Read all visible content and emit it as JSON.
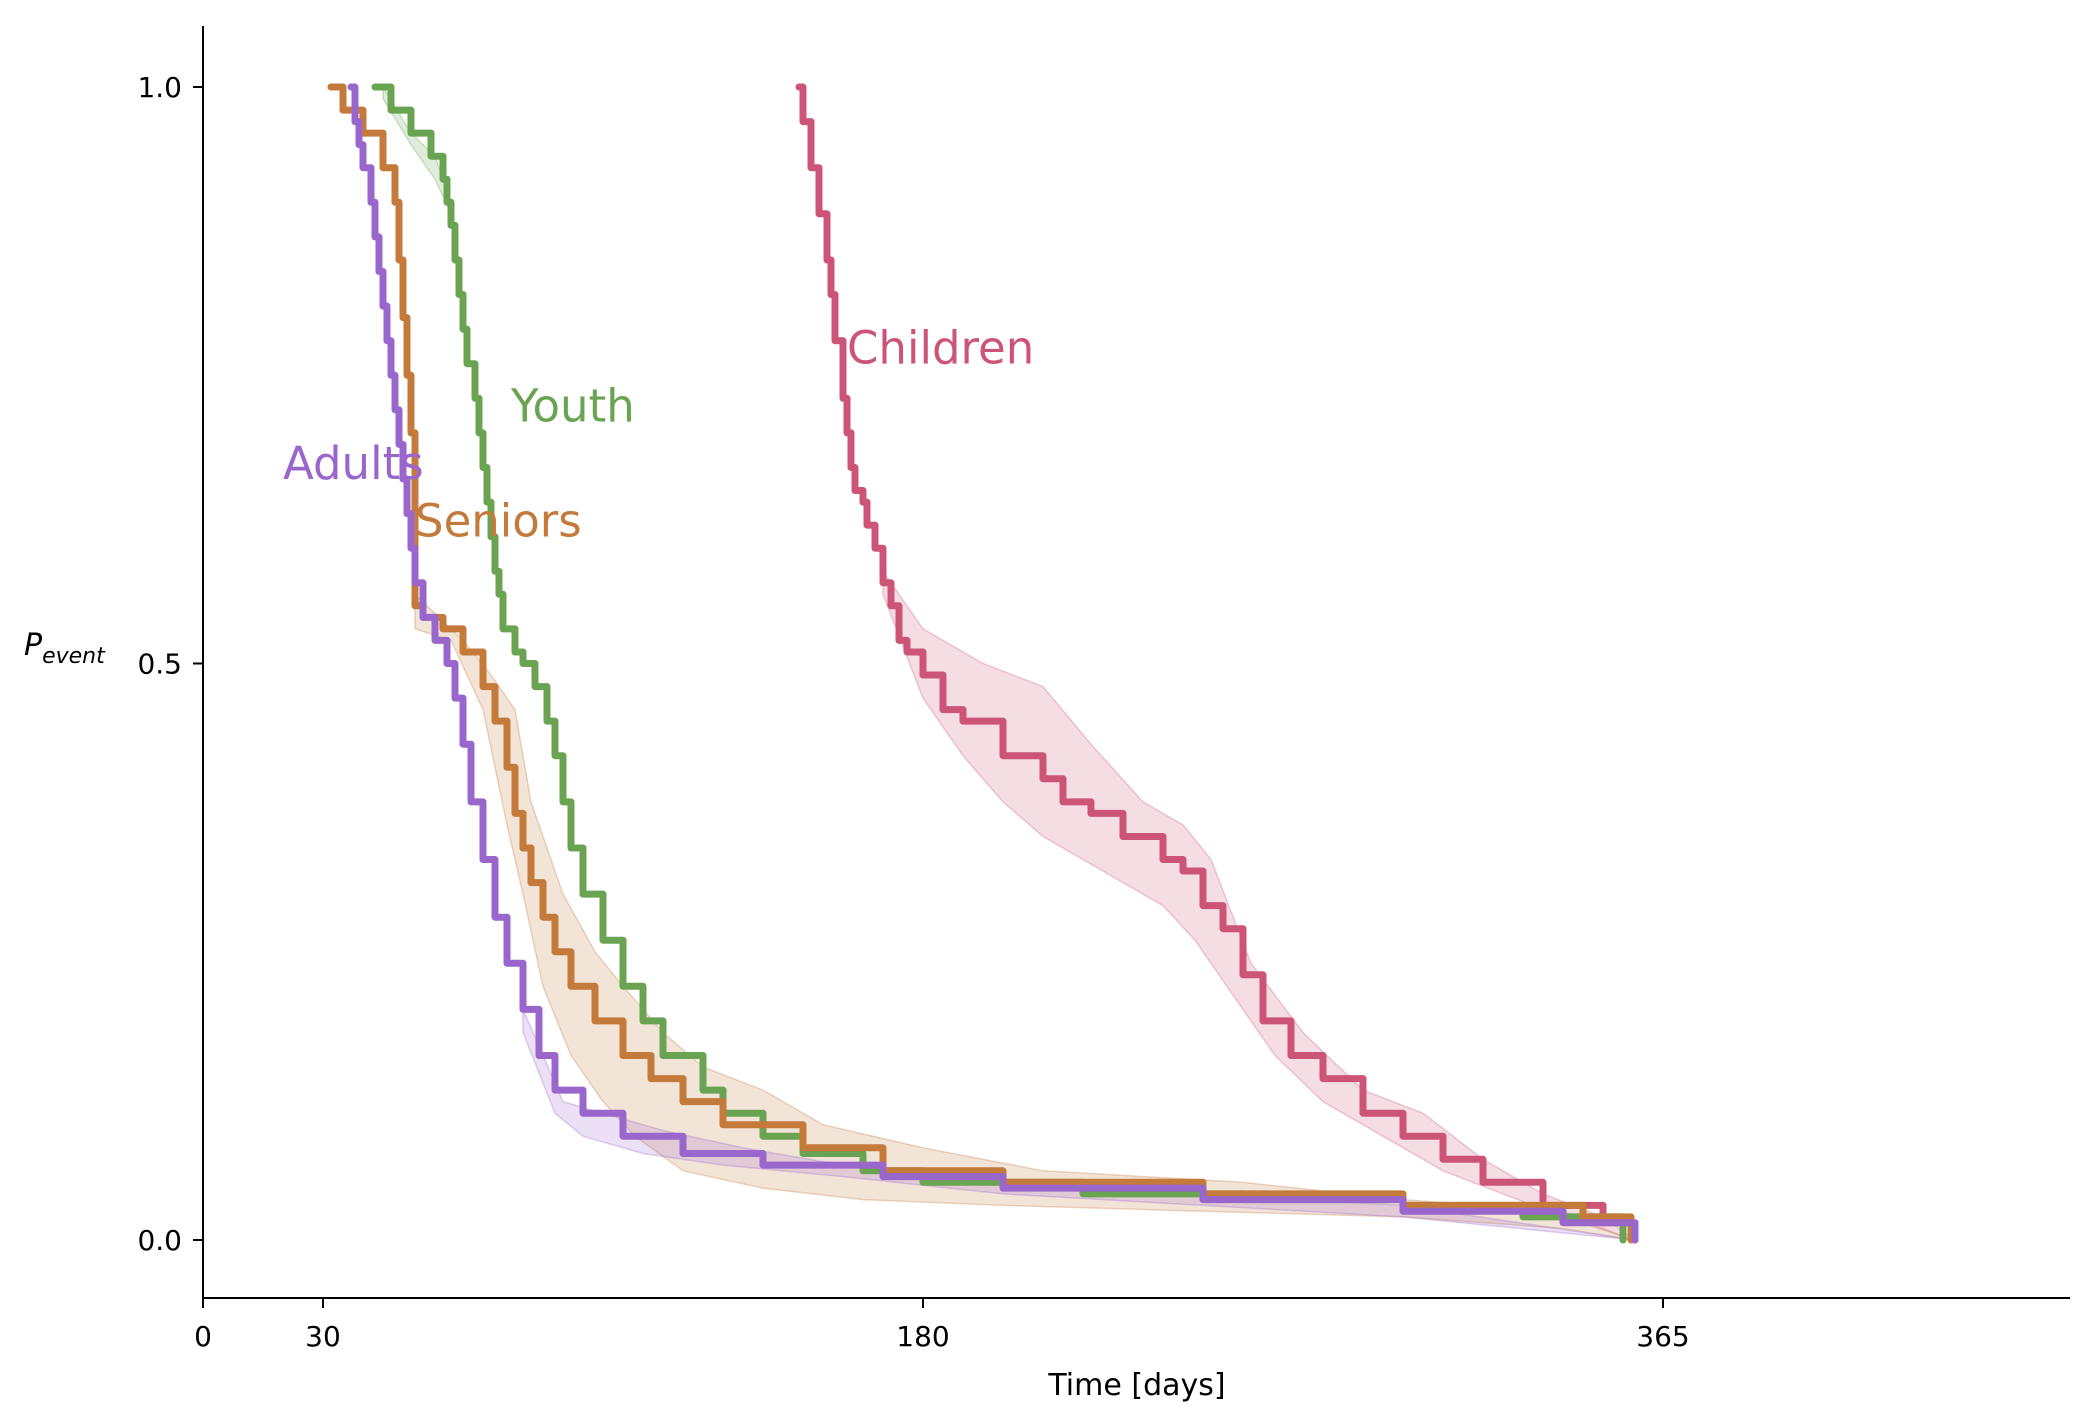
{
  "chart_data": {
    "type": "line",
    "title": "",
    "xlabel": "Time [days]",
    "ylabel_main": "P",
    "ylabel_sub": "event",
    "xlim": [
      0,
      375
    ],
    "ylim": [
      -0.05,
      1.05
    ],
    "xticks": [
      0,
      30,
      180,
      365
    ],
    "xtick_labels": [
      "0",
      "30",
      "180",
      "365"
    ],
    "yticks": [
      0.0,
      0.5,
      1.0
    ],
    "ytick_labels": [
      "0.0",
      "0.5",
      "1.0"
    ],
    "grid": false,
    "series": [
      {
        "name": "Children",
        "color": "#cc5577",
        "label_at": [
          161,
          0.76
        ],
        "points": [
          [
            149,
            1.0
          ],
          [
            150,
            0.97
          ],
          [
            152,
            0.93
          ],
          [
            154,
            0.89
          ],
          [
            156,
            0.85
          ],
          [
            157,
            0.82
          ],
          [
            158,
            0.78
          ],
          [
            160,
            0.73
          ],
          [
            161,
            0.7
          ],
          [
            162,
            0.67
          ],
          [
            163,
            0.65
          ],
          [
            165,
            0.64
          ],
          [
            166,
            0.62
          ],
          [
            168,
            0.6
          ],
          [
            170,
            0.57
          ],
          [
            172,
            0.55
          ],
          [
            174,
            0.52
          ],
          [
            176,
            0.51
          ],
          [
            180,
            0.49
          ],
          [
            185,
            0.46
          ],
          [
            190,
            0.45
          ],
          [
            200,
            0.42
          ],
          [
            210,
            0.4
          ],
          [
            215,
            0.38
          ],
          [
            222,
            0.37
          ],
          [
            230,
            0.35
          ],
          [
            240,
            0.33
          ],
          [
            245,
            0.32
          ],
          [
            250,
            0.29
          ],
          [
            255,
            0.27
          ],
          [
            260,
            0.23
          ],
          [
            265,
            0.19
          ],
          [
            272,
            0.16
          ],
          [
            280,
            0.14
          ],
          [
            290,
            0.11
          ],
          [
            300,
            0.09
          ],
          [
            310,
            0.07
          ],
          [
            320,
            0.05
          ],
          [
            335,
            0.03
          ],
          [
            350,
            0.015
          ],
          [
            358,
            0.0
          ]
        ],
        "band": [
          [
            [
              170,
              0.58
            ],
            [
              180,
              0.53
            ],
            [
              195,
              0.5
            ],
            [
              210,
              0.48
            ],
            [
              222,
              0.43
            ],
            [
              235,
              0.38
            ],
            [
              245,
              0.36
            ],
            [
              252,
              0.33
            ],
            [
              262,
              0.24
            ],
            [
              275,
              0.18
            ],
            [
              290,
              0.13
            ],
            [
              305,
              0.11
            ],
            [
              320,
              0.07
            ],
            [
              335,
              0.04
            ],
            [
              350,
              0.02
            ],
            [
              358,
              0.0
            ]
          ],
          [
            [
              170,
              0.56
            ],
            [
              180,
              0.47
            ],
            [
              190,
              0.42
            ],
            [
              200,
              0.38
            ],
            [
              210,
              0.35
            ],
            [
              220,
              0.33
            ],
            [
              230,
              0.31
            ],
            [
              240,
              0.29
            ],
            [
              248,
              0.26
            ],
            [
              258,
              0.21
            ],
            [
              268,
              0.16
            ],
            [
              280,
              0.12
            ],
            [
              295,
              0.09
            ],
            [
              310,
              0.06
            ],
            [
              325,
              0.04
            ],
            [
              340,
              0.02
            ],
            [
              358,
              0.0
            ]
          ]
        ]
      },
      {
        "name": "Youth",
        "color": "#6aa352",
        "label_at": [
          77,
          0.71
        ],
        "points": [
          [
            43,
            1.0
          ],
          [
            47,
            0.98
          ],
          [
            52,
            0.96
          ],
          [
            57,
            0.94
          ],
          [
            60,
            0.92
          ],
          [
            61,
            0.9
          ],
          [
            62,
            0.88
          ],
          [
            63,
            0.85
          ],
          [
            64,
            0.82
          ],
          [
            65,
            0.79
          ],
          [
            66,
            0.76
          ],
          [
            68,
            0.73
          ],
          [
            69,
            0.7
          ],
          [
            70,
            0.67
          ],
          [
            71,
            0.64
          ],
          [
            72,
            0.61
          ],
          [
            73,
            0.58
          ],
          [
            74,
            0.56
          ],
          [
            75,
            0.53
          ],
          [
            78,
            0.51
          ],
          [
            80,
            0.5
          ],
          [
            83,
            0.48
          ],
          [
            86,
            0.45
          ],
          [
            88,
            0.42
          ],
          [
            90,
            0.38
          ],
          [
            92,
            0.34
          ],
          [
            95,
            0.3
          ],
          [
            100,
            0.26
          ],
          [
            105,
            0.22
          ],
          [
            110,
            0.19
          ],
          [
            115,
            0.16
          ],
          [
            125,
            0.13
          ],
          [
            130,
            0.11
          ],
          [
            140,
            0.09
          ],
          [
            150,
            0.075
          ],
          [
            165,
            0.06
          ],
          [
            180,
            0.05
          ],
          [
            220,
            0.04
          ],
          [
            260,
            0.035
          ],
          [
            300,
            0.03
          ],
          [
            330,
            0.02
          ],
          [
            355,
            0.0
          ]
        ],
        "band": [
          [
            [
              45,
              1.0
            ],
            [
              52,
              0.96
            ],
            [
              58,
              0.94
            ],
            [
              62,
              0.9
            ]
          ],
          [
            [
              45,
              0.99
            ],
            [
              52,
              0.95
            ],
            [
              58,
              0.92
            ],
            [
              62,
              0.89
            ]
          ]
        ]
      },
      {
        "name": "Seniors",
        "color": "#c47a3a",
        "label_at": [
          53,
          0.61
        ],
        "points": [
          [
            32,
            1.0
          ],
          [
            35,
            0.98
          ],
          [
            40,
            0.96
          ],
          [
            45,
            0.93
          ],
          [
            48,
            0.9
          ],
          [
            49,
            0.85
          ],
          [
            50,
            0.8
          ],
          [
            51,
            0.75
          ],
          [
            52,
            0.7
          ],
          [
            53,
            0.65
          ],
          [
            53,
            0.55
          ],
          [
            55,
            0.54
          ],
          [
            60,
            0.53
          ],
          [
            65,
            0.51
          ],
          [
            70,
            0.48
          ],
          [
            73,
            0.45
          ],
          [
            76,
            0.41
          ],
          [
            78,
            0.37
          ],
          [
            80,
            0.34
          ],
          [
            82,
            0.31
          ],
          [
            85,
            0.28
          ],
          [
            88,
            0.25
          ],
          [
            92,
            0.22
          ],
          [
            98,
            0.19
          ],
          [
            105,
            0.16
          ],
          [
            112,
            0.14
          ],
          [
            120,
            0.12
          ],
          [
            130,
            0.1
          ],
          [
            150,
            0.08
          ],
          [
            170,
            0.06
          ],
          [
            200,
            0.05
          ],
          [
            250,
            0.04
          ],
          [
            300,
            0.03
          ],
          [
            345,
            0.02
          ],
          [
            357,
            0.0
          ]
        ],
        "band": [
          [
            [
              53,
              0.56
            ],
            [
              65,
              0.52
            ],
            [
              72,
              0.49
            ],
            [
              78,
              0.46
            ],
            [
              82,
              0.38
            ],
            [
              85,
              0.35
            ],
            [
              90,
              0.3
            ],
            [
              98,
              0.25
            ],
            [
              105,
              0.22
            ],
            [
              115,
              0.18
            ],
            [
              125,
              0.15
            ],
            [
              140,
              0.13
            ],
            [
              155,
              0.1
            ],
            [
              180,
              0.08
            ],
            [
              210,
              0.06
            ],
            [
              260,
              0.05
            ],
            [
              300,
              0.035
            ],
            [
              340,
              0.025
            ],
            [
              357,
              0.0
            ]
          ],
          [
            [
              53,
              0.53
            ],
            [
              62,
              0.52
            ],
            [
              70,
              0.46
            ],
            [
              76,
              0.36
            ],
            [
              80,
              0.3
            ],
            [
              85,
              0.22
            ],
            [
              92,
              0.16
            ],
            [
              100,
              0.12
            ],
            [
              108,
              0.09
            ],
            [
              120,
              0.06
            ],
            [
              140,
              0.045
            ],
            [
              165,
              0.035
            ],
            [
              200,
              0.03
            ],
            [
              250,
              0.025
            ],
            [
              300,
              0.02
            ],
            [
              340,
              0.01
            ],
            [
              357,
              0.0
            ]
          ]
        ]
      },
      {
        "name": "Adults",
        "color": "#9966cc",
        "label_at": [
          20,
          0.66
        ],
        "points": [
          [
            37,
            1.0
          ],
          [
            38,
            0.97
          ],
          [
            39,
            0.95
          ],
          [
            40,
            0.93
          ],
          [
            42,
            0.9
          ],
          [
            43,
            0.87
          ],
          [
            44,
            0.84
          ],
          [
            45,
            0.81
          ],
          [
            46,
            0.78
          ],
          [
            47,
            0.75
          ],
          [
            48,
            0.72
          ],
          [
            49,
            0.69
          ],
          [
            50,
            0.66
          ],
          [
            51,
            0.63
          ],
          [
            52,
            0.6
          ],
          [
            53,
            0.57
          ],
          [
            55,
            0.54
          ],
          [
            58,
            0.52
          ],
          [
            61,
            0.5
          ],
          [
            63,
            0.47
          ],
          [
            65,
            0.43
          ],
          [
            67,
            0.38
          ],
          [
            70,
            0.33
          ],
          [
            73,
            0.28
          ],
          [
            76,
            0.24
          ],
          [
            80,
            0.2
          ],
          [
            84,
            0.16
          ],
          [
            88,
            0.13
          ],
          [
            95,
            0.11
          ],
          [
            105,
            0.09
          ],
          [
            120,
            0.075
          ],
          [
            140,
            0.065
          ],
          [
            170,
            0.055
          ],
          [
            200,
            0.045
          ],
          [
            250,
            0.035
          ],
          [
            300,
            0.025
          ],
          [
            340,
            0.015
          ],
          [
            358,
            0.0
          ]
        ],
        "band": [
          [
            [
              80,
              0.2
            ],
            [
              90,
              0.12
            ],
            [
              100,
              0.11
            ],
            [
              115,
              0.095
            ],
            [
              135,
              0.08
            ],
            [
              160,
              0.065
            ],
            [
              200,
              0.05
            ],
            [
              250,
              0.04
            ],
            [
              300,
              0.03
            ],
            [
              358,
              0.0
            ]
          ],
          [
            [
              80,
              0.18
            ],
            [
              88,
              0.11
            ],
            [
              95,
              0.09
            ],
            [
              110,
              0.075
            ],
            [
              130,
              0.065
            ],
            [
              160,
              0.055
            ],
            [
              200,
              0.04
            ],
            [
              250,
              0.03
            ],
            [
              300,
              0.02
            ],
            [
              358,
              0.0
            ]
          ]
        ]
      }
    ]
  }
}
